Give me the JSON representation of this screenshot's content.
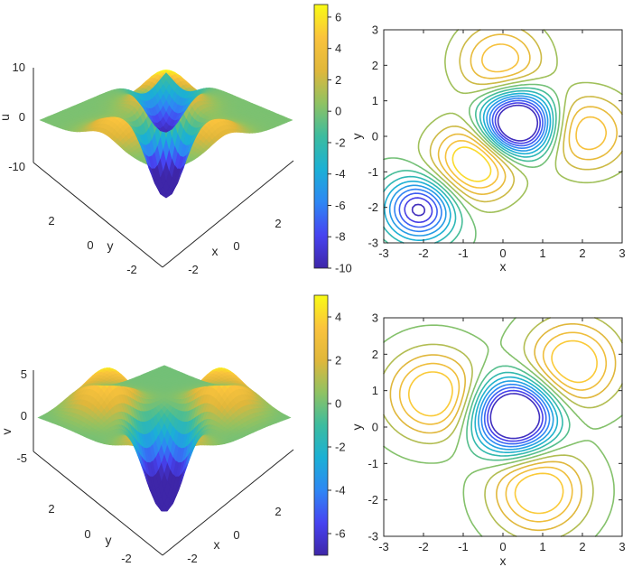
{
  "colormap_stops": [
    "#3e26a8",
    "#4743f1",
    "#2e87f4",
    "#1bb0d5",
    "#3cbc9f",
    "#8fc263",
    "#e0b73b",
    "#fac33d",
    "#f9fb14"
  ],
  "chart_data": [
    {
      "type": "surface",
      "title": "",
      "zlabel": "u",
      "xlabel": "x",
      "ylabel": "y",
      "xlim": [
        -3,
        3
      ],
      "ylim": [
        -3,
        3
      ],
      "zlim": [
        -15,
        10
      ],
      "x_ticks": [
        "-2",
        "0",
        "2"
      ],
      "y_ticks": [
        "-2",
        "0",
        "2"
      ],
      "z_ticks": [
        "10",
        "0",
        "-10"
      ],
      "colorbar": {
        "range": [
          -10,
          6.8
        ],
        "tick_labels": [
          "6",
          "4",
          "2",
          "0",
          "-2",
          "-4",
          "-6",
          "-8",
          "-10"
        ]
      }
    },
    {
      "type": "contour",
      "title": "",
      "xlabel": "x",
      "ylabel": "y",
      "xlim": [
        -3,
        3
      ],
      "ylim": [
        -3,
        3
      ],
      "x_ticks": [
        "-3",
        "-2",
        "-1",
        "0",
        "1",
        "2",
        "3"
      ],
      "y_ticks": [
        "3",
        "2",
        "1",
        "0",
        "-1",
        "-2",
        "-3"
      ],
      "features": [
        {
          "kind": "min",
          "x": 0.35,
          "y": 0.35,
          "value": -10
        },
        {
          "kind": "min",
          "x": -2.1,
          "y": -2.05,
          "value": -8
        },
        {
          "kind": "max",
          "x": -0.7,
          "y": -0.7,
          "value": 6
        },
        {
          "kind": "max",
          "x": -0.05,
          "y": 2.1,
          "value": 4
        },
        {
          "kind": "max",
          "x": 2.1,
          "y": 0.1,
          "value": 4
        }
      ]
    },
    {
      "type": "surface",
      "title": "",
      "zlabel": "v",
      "xlabel": "x",
      "ylabel": "y",
      "xlim": [
        -3,
        3
      ],
      "ylim": [
        -3,
        3
      ],
      "zlim": [
        -8,
        5
      ],
      "x_ticks": [
        "-2",
        "0",
        "2"
      ],
      "y_ticks": [
        "-2",
        "0",
        "2"
      ],
      "z_ticks": [
        "5",
        "0",
        "-5"
      ],
      "colorbar": {
        "range": [
          -7,
          5
        ],
        "tick_labels": [
          "4",
          "2",
          "0",
          "-2",
          "-4",
          "-6"
        ]
      }
    },
    {
      "type": "contour",
      "title": "",
      "xlabel": "x",
      "ylabel": "y",
      "xlim": [
        -3,
        3
      ],
      "ylim": [
        -3,
        3
      ],
      "x_ticks": [
        "-3",
        "-2",
        "-1",
        "0",
        "1",
        "2",
        "3"
      ],
      "y_ticks": [
        "3",
        "2",
        "1",
        "0",
        "-1",
        "-2",
        "-3"
      ],
      "features": [
        {
          "kind": "min",
          "x": 0.3,
          "y": 0.3,
          "value": -7
        },
        {
          "kind": "max",
          "x": -1.75,
          "y": 0.9,
          "value": 3.5
        },
        {
          "kind": "max",
          "x": 1.75,
          "y": 1.75,
          "value": 3.5
        },
        {
          "kind": "max",
          "x": 0.9,
          "y": -1.75,
          "value": 3.5
        }
      ]
    }
  ]
}
